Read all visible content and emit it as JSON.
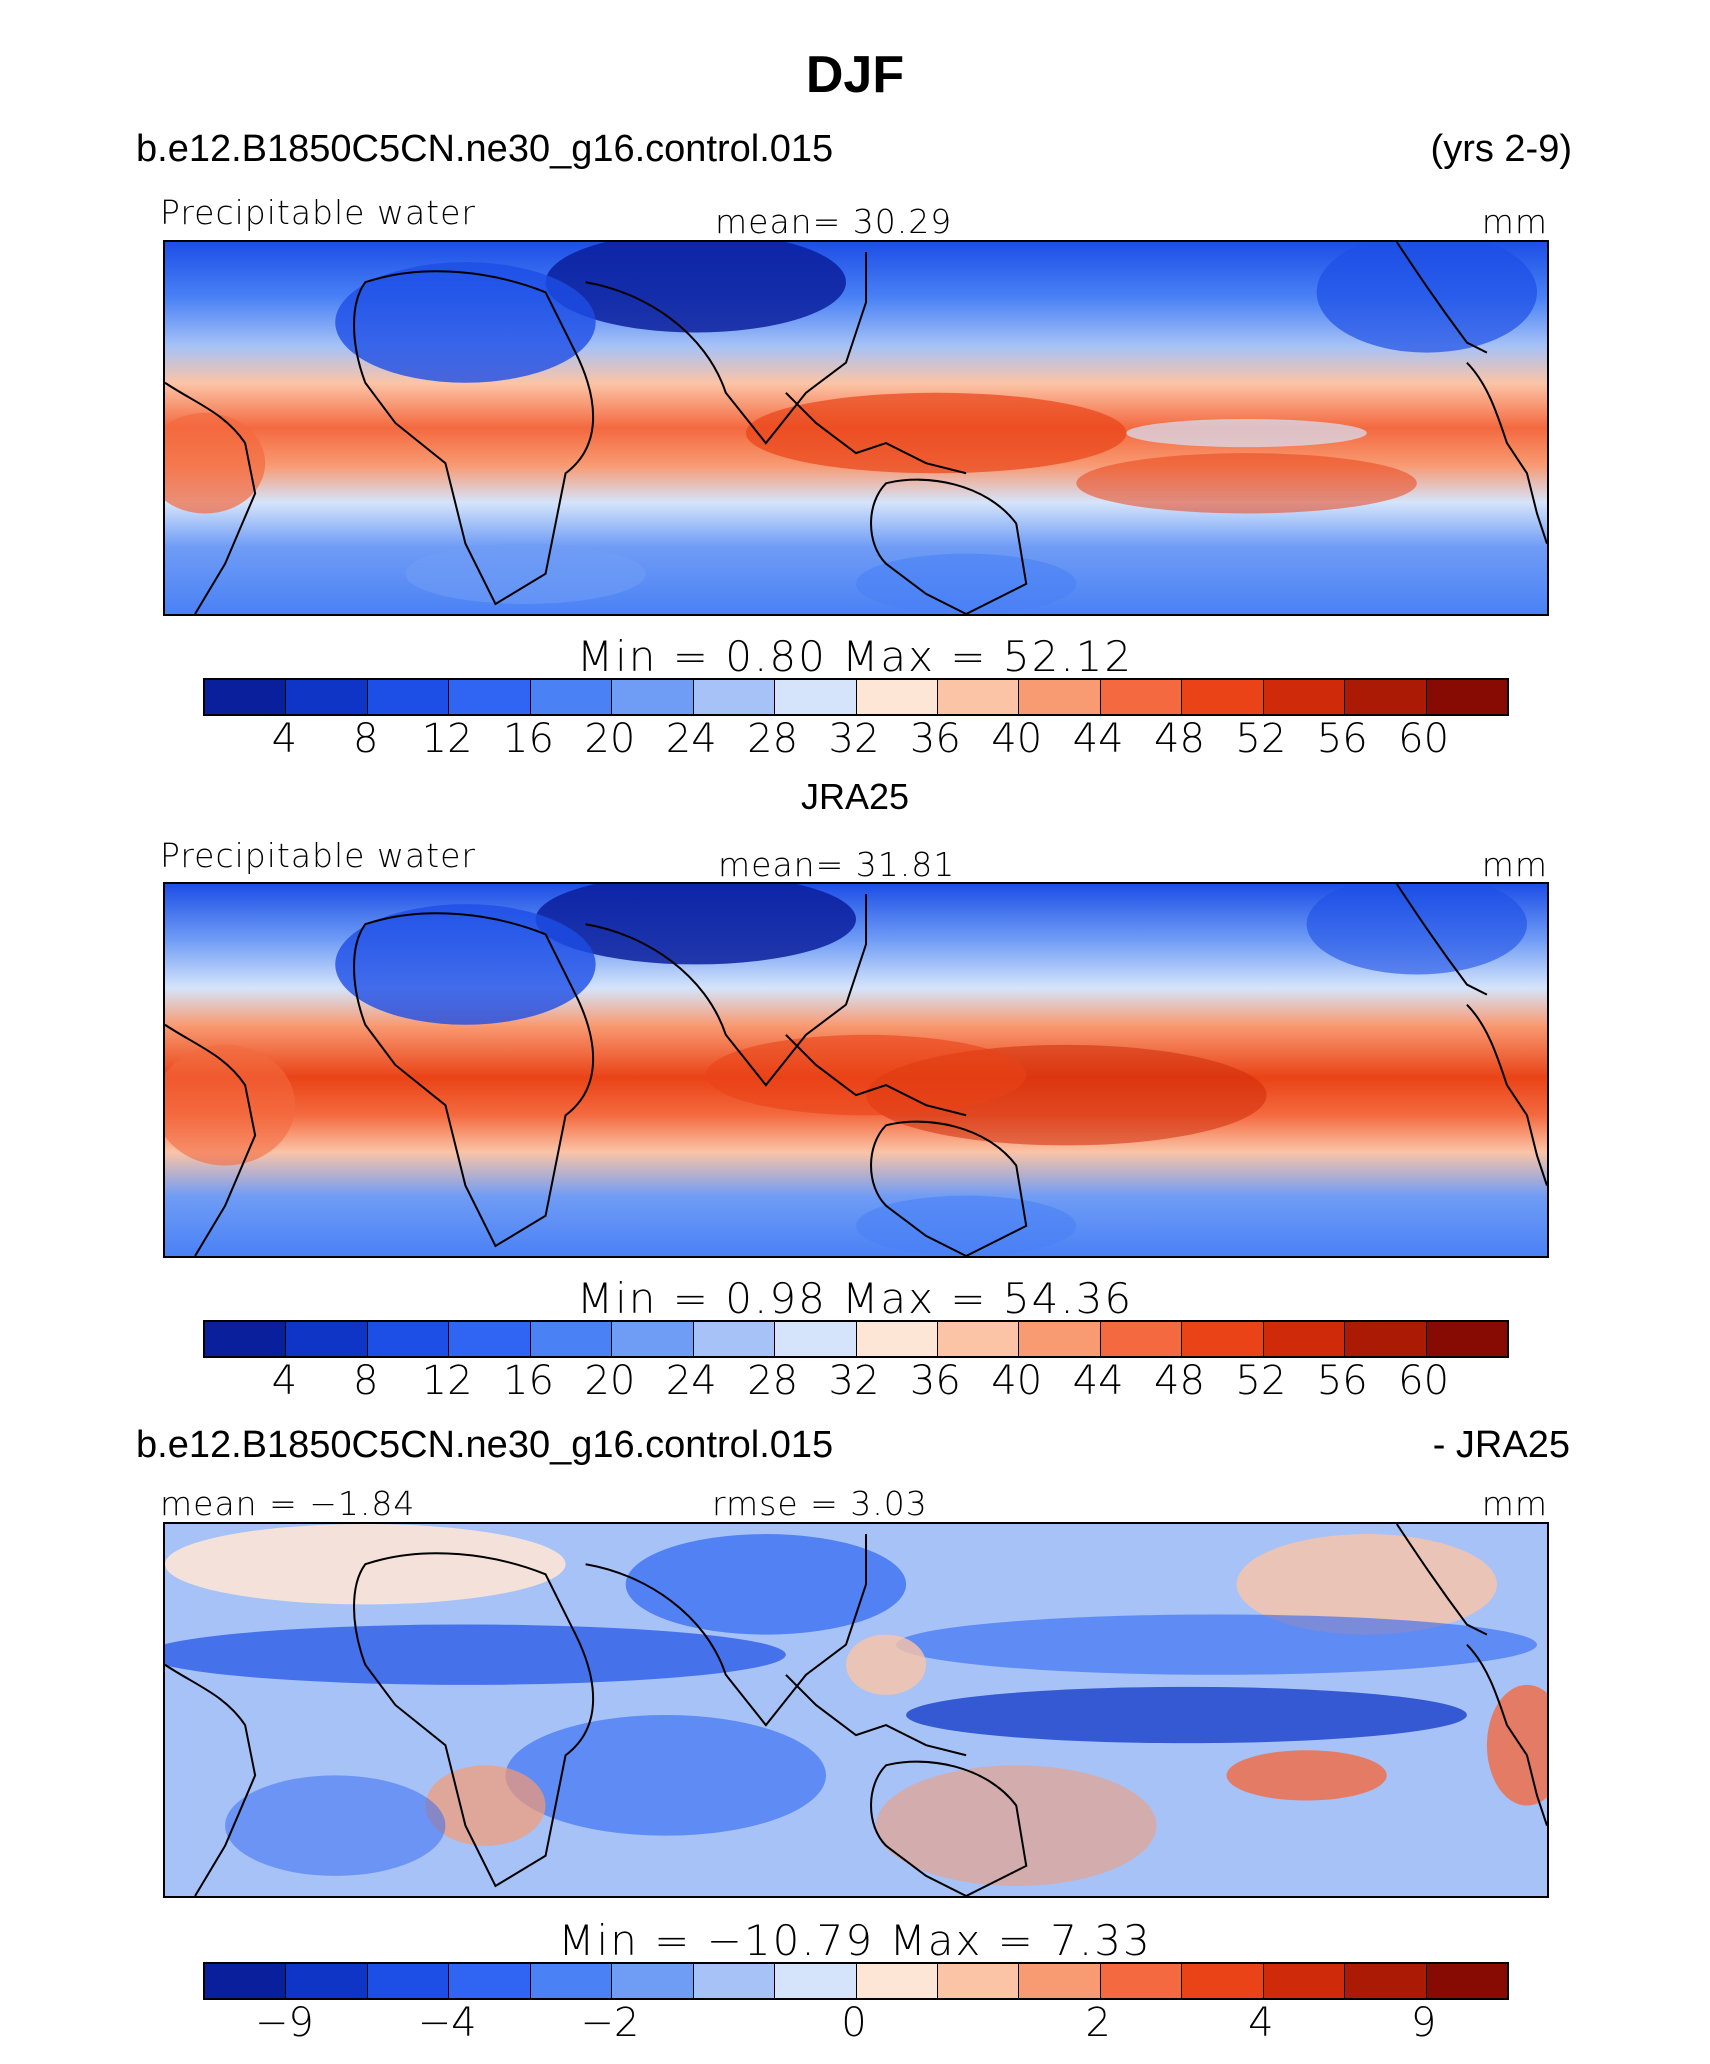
{
  "title": "DJF",
  "top_header": {
    "case": "b.e12.B1850C5CN.ne30_g16.control.015",
    "years": "(yrs 2-9)"
  },
  "panels": [
    {
      "id": "model",
      "field": "Precipitable water",
      "mean_label": "mean=   30.29",
      "units": "mm",
      "stats": "Min =    0.80  Max =   52.12",
      "colorbar": {
        "colors": [
          "#0a1f9c",
          "#0f35c7",
          "#1d4ee6",
          "#2f65f2",
          "#4a81f5",
          "#6f9cf5",
          "#a6c2f7",
          "#d5e4fb",
          "#fde6d6",
          "#fbc4a6",
          "#f89a72",
          "#f4693f",
          "#ea4317",
          "#cf2b0a",
          "#ab1a05",
          "#870b02"
        ],
        "tick_labels": [
          "4",
          "8",
          "12",
          "16",
          "20",
          "24",
          "28",
          "32",
          "36",
          "40",
          "44",
          "48",
          "52",
          "56",
          "60"
        ]
      }
    },
    {
      "id": "obs",
      "subtitle": "JRA25",
      "field": "Precipitable water",
      "mean_label": "mean=   31.81",
      "units": "mm",
      "stats": "Min =    0.98  Max =   54.36",
      "colorbar": {
        "colors": [
          "#0a1f9c",
          "#0f35c7",
          "#1d4ee6",
          "#2f65f2",
          "#4a81f5",
          "#6f9cf5",
          "#a6c2f7",
          "#d5e4fb",
          "#fde6d6",
          "#fbc4a6",
          "#f89a72",
          "#f4693f",
          "#ea4317",
          "#cf2b0a",
          "#ab1a05",
          "#870b02"
        ],
        "tick_labels": [
          "4",
          "8",
          "12",
          "16",
          "20",
          "24",
          "28",
          "32",
          "36",
          "40",
          "44",
          "48",
          "52",
          "56",
          "60"
        ]
      }
    },
    {
      "id": "diff",
      "header_left": "b.e12.B1850C5CN.ne30_g16.control.015",
      "header_right": "- JRA25",
      "mean_label": "mean =  −1.84",
      "rmse_label": "rmse =    3.03",
      "units": "mm",
      "stats": "Min = −10.79  Max =    7.33",
      "colorbar": {
        "colors": [
          "#0a1f9c",
          "#0f35c7",
          "#1d4ee6",
          "#2f65f2",
          "#4a81f5",
          "#6f9cf5",
          "#a6c2f7",
          "#d5e4fb",
          "#fde6d6",
          "#fbc4a6",
          "#f89a72",
          "#f4693f",
          "#ea4317",
          "#cf2b0a",
          "#ab1a05",
          "#870b02"
        ],
        "tick_labels": [
          "−9",
          "−4",
          "−2",
          "0",
          "2",
          "4",
          "9"
        ]
      }
    }
  ]
}
